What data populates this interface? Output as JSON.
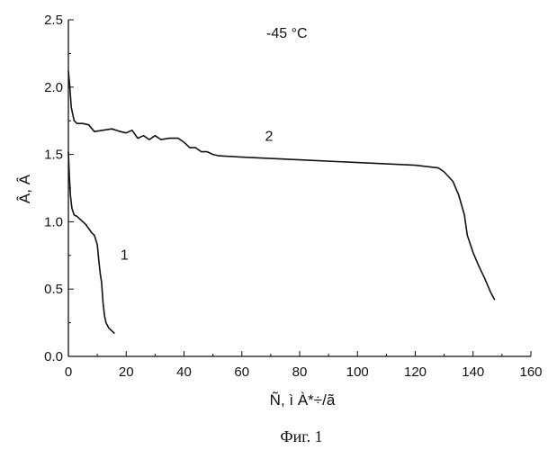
{
  "chart_data": {
    "type": "line",
    "title": "",
    "annotation": "-45 °C",
    "xlabel": "Ñ, ì À*÷/ã",
    "ylabel": "Â, Â",
    "xlim": [
      0,
      160
    ],
    "ylim": [
      0.0,
      2.5
    ],
    "xticks": [
      "0",
      "20",
      "40",
      "60",
      "80",
      "100",
      "120",
      "140",
      "160"
    ],
    "yticks": [
      "0.0",
      "0.5",
      "1.0",
      "1.5",
      "2.0",
      "2.5"
    ],
    "grid": false,
    "series": [
      {
        "name": "1",
        "x": [
          0,
          0.3,
          0.7,
          1.2,
          2,
          3,
          4,
          5,
          6,
          7,
          8,
          9,
          10,
          10.5,
          11,
          11.5,
          12,
          12.5,
          13,
          14,
          16
        ],
        "y": [
          1.52,
          1.35,
          1.2,
          1.1,
          1.05,
          1.04,
          1.02,
          1.0,
          0.98,
          0.95,
          0.92,
          0.9,
          0.83,
          0.72,
          0.62,
          0.55,
          0.4,
          0.3,
          0.25,
          0.21,
          0.17
        ]
      },
      {
        "name": "2",
        "x": [
          0,
          0.5,
          1,
          2,
          3,
          5,
          7,
          9,
          12,
          15,
          18,
          20,
          22,
          24,
          26,
          28,
          30,
          32,
          35,
          38,
          40,
          42,
          44,
          46,
          48,
          50,
          52,
          60,
          80,
          100,
          120,
          128,
          130,
          133,
          135,
          137,
          138,
          140,
          142,
          144,
          146,
          147.5
        ],
        "y": [
          2.12,
          2.0,
          1.85,
          1.75,
          1.73,
          1.73,
          1.72,
          1.67,
          1.68,
          1.69,
          1.67,
          1.66,
          1.68,
          1.62,
          1.64,
          1.61,
          1.64,
          1.61,
          1.62,
          1.62,
          1.59,
          1.55,
          1.55,
          1.52,
          1.52,
          1.5,
          1.49,
          1.48,
          1.46,
          1.44,
          1.42,
          1.4,
          1.37,
          1.3,
          1.2,
          1.05,
          0.9,
          0.77,
          0.67,
          0.58,
          0.48,
          0.42
        ]
      }
    ],
    "series_labels": [
      {
        "text": "1",
        "x": 18,
        "y": 0.72
      },
      {
        "text": "2",
        "x": 68,
        "y": 1.6
      }
    ]
  },
  "caption": "Фиг. 1"
}
